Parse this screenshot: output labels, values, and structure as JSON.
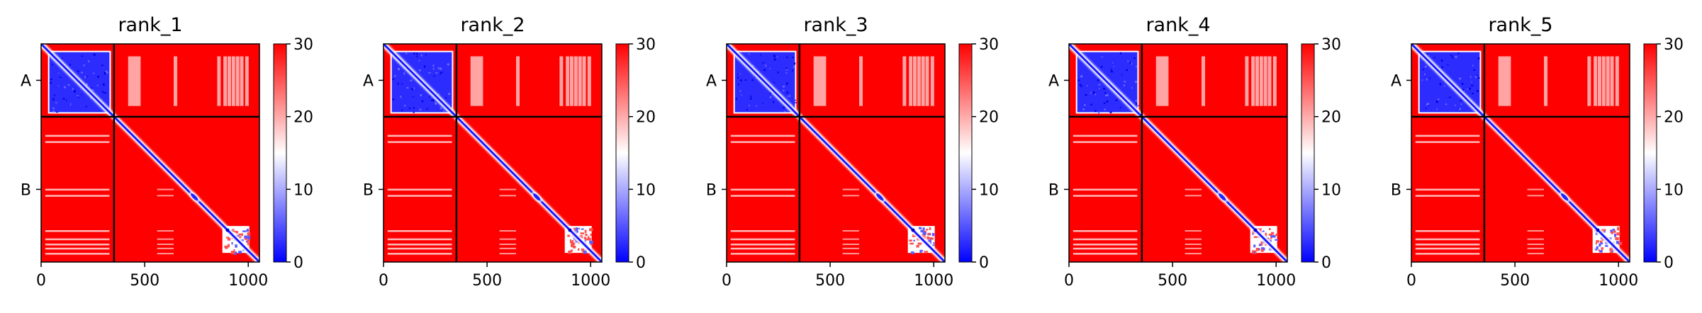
{
  "chart_data": {
    "type": "heatmap",
    "colormap": [
      "#0000ff",
      "#ffffff",
      "#ff0000"
    ],
    "colorbar": {
      "ticks": [
        0,
        10,
        20,
        30
      ],
      "range": [
        0,
        30
      ]
    },
    "x_ticks": [
      0,
      500,
      1000
    ],
    "x_range": [
      0,
      1054
    ],
    "chain_boundary": 352,
    "chain_labels": [
      "A",
      "B"
    ],
    "chain_label_positions": [
      176,
      703
    ],
    "panels": [
      {
        "title": "rank_1"
      },
      {
        "title": "rank_2"
      },
      {
        "title": "rank_3"
      },
      {
        "title": "rank_4"
      },
      {
        "title": "rank_5"
      }
    ]
  }
}
